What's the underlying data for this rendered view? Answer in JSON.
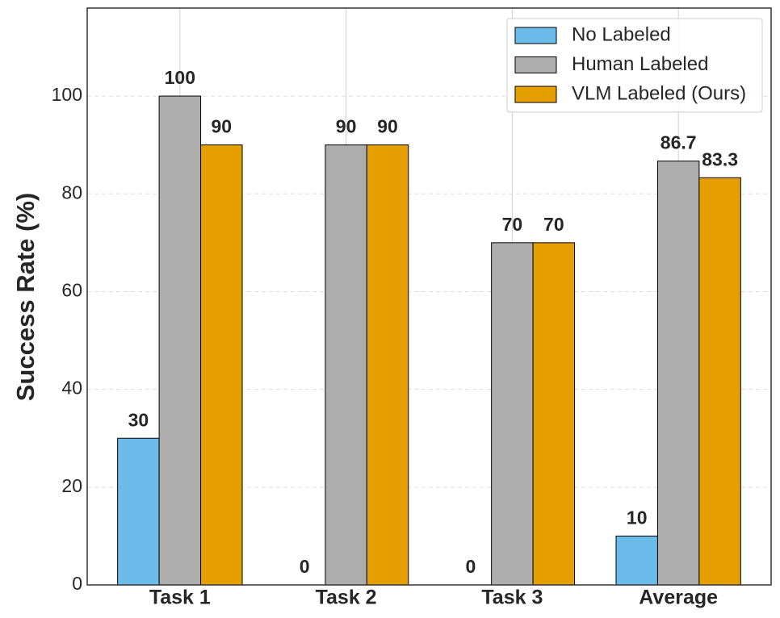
{
  "chart_data": {
    "type": "bar",
    "y_label": "Success Rate (%)",
    "categories": [
      "Task 1",
      "Task 2",
      "Task 3",
      "Average"
    ],
    "series": [
      {
        "name": "No Labeled",
        "color": "#6bbcea",
        "values": [
          30,
          0,
          0,
          10
        ]
      },
      {
        "name": "Human Labeled",
        "color": "#adadad",
        "values": [
          100,
          90,
          70,
          86.7
        ]
      },
      {
        "name": "VLM Labeled (Ours)",
        "color": "#e69f00",
        "values": [
          90,
          90,
          70,
          83.3
        ]
      }
    ],
    "ylim": [
      0,
      118
    ],
    "yticks": [
      0,
      20,
      40,
      60,
      80,
      100
    ],
    "grid": true,
    "legend": "upper right"
  }
}
